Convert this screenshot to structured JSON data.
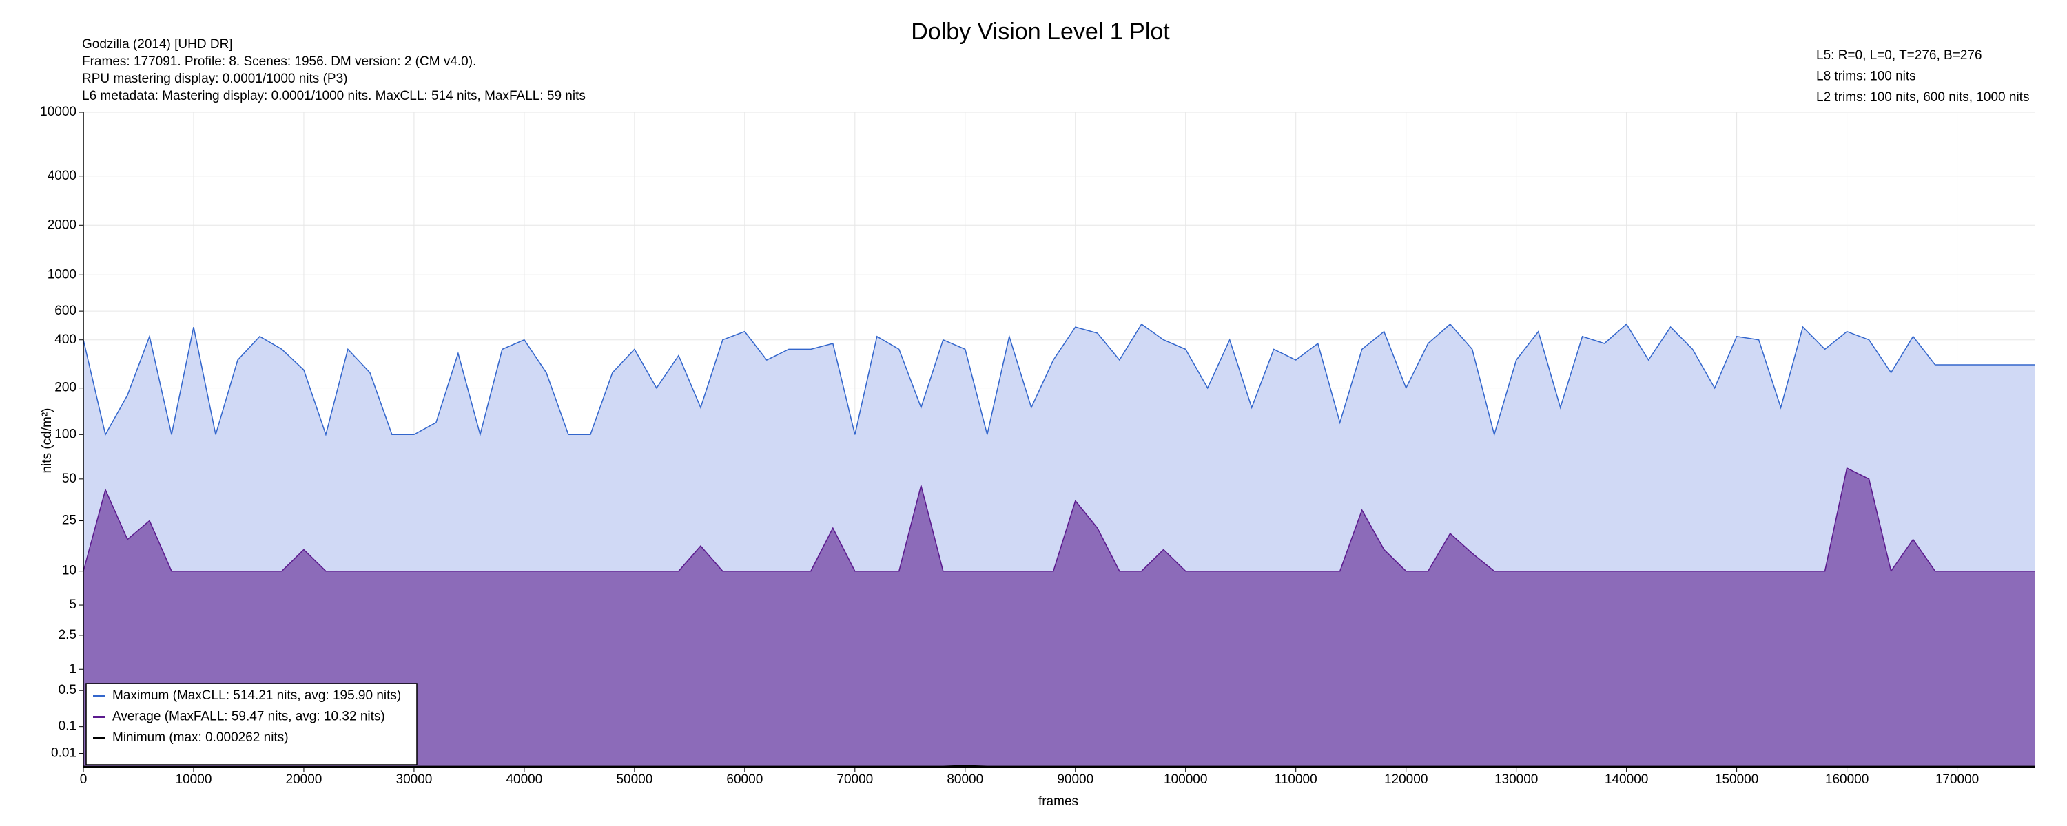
{
  "chart_data": {
    "type": "area",
    "title": "Dolby Vision Level 1 Plot",
    "info_left": [
      "Godzilla (2014) [UHD DR]",
      "Frames: 177091. Profile: 8. Scenes: 1956. DM version: 2 (CM v4.0).",
      "RPU mastering display: 0.0001/1000 nits  (P3)",
      "L6 metadata: Mastering display: 0.0001/1000 nits. MaxCLL: 514 nits, MaxFALL: 59 nits"
    ],
    "info_right": [
      "L5: R=0, L=0, T=276, B=276",
      "L8 trims: 100 nits",
      "L2 trims: 100 nits, 600 nits, 1000 nits"
    ],
    "x_label": "frames",
    "y_label": "nits (cd/m²)",
    "y_scale": "pq",
    "grid": true,
    "legend": "lower left",
    "xlim": [
      0,
      177091
    ],
    "xticks": [
      0,
      10000,
      20000,
      30000,
      40000,
      50000,
      60000,
      70000,
      80000,
      90000,
      100000,
      110000,
      120000,
      130000,
      140000,
      150000,
      160000,
      170000
    ],
    "ylim": [
      0,
      10000
    ],
    "yticks": [
      0.01,
      0.1,
      0.5,
      1,
      2.5,
      5,
      10,
      25,
      50,
      100,
      200,
      400,
      600,
      1000,
      2000,
      4000,
      10000
    ],
    "x": [
      0,
      2000,
      4000,
      6000,
      8000,
      10000,
      12000,
      14000,
      16000,
      18000,
      20000,
      22000,
      24000,
      26000,
      28000,
      30000,
      32000,
      34000,
      36000,
      38000,
      40000,
      42000,
      44000,
      46000,
      48000,
      50000,
      52000,
      54000,
      56000,
      58000,
      60000,
      62000,
      64000,
      66000,
      68000,
      70000,
      72000,
      74000,
      76000,
      78000,
      80000,
      82000,
      84000,
      86000,
      88000,
      90000,
      92000,
      94000,
      96000,
      98000,
      100000,
      102000,
      104000,
      106000,
      108000,
      110000,
      112000,
      114000,
      116000,
      118000,
      120000,
      122000,
      124000,
      126000,
      128000,
      130000,
      132000,
      134000,
      136000,
      138000,
      140000,
      142000,
      144000,
      146000,
      148000,
      150000,
      152000,
      154000,
      156000,
      158000,
      160000,
      162000,
      164000,
      166000,
      168000,
      170000,
      172000,
      174000,
      176000,
      177091
    ],
    "series": [
      {
        "name": "Maximum (MaxCLL: 514.21 nits, avg: 195.90 nits)",
        "color": "#3366cc",
        "fill": "#d0d9f5",
        "values": [
          400,
          100,
          180,
          420,
          100,
          480,
          100,
          300,
          420,
          350,
          260,
          100,
          350,
          250,
          100,
          100,
          120,
          330,
          100,
          350,
          400,
          250,
          100,
          100,
          250,
          350,
          200,
          320,
          150,
          400,
          450,
          300,
          350,
          350,
          380,
          100,
          420,
          350,
          150,
          400,
          350,
          100,
          420,
          150,
          300,
          480,
          440,
          300,
          500,
          400,
          350,
          200,
          400,
          150,
          350,
          300,
          380,
          120,
          350,
          450,
          200,
          380,
          500,
          350,
          100,
          300,
          450,
          150,
          420,
          380,
          500,
          300,
          480,
          350,
          200,
          420,
          400,
          150,
          480,
          350,
          450,
          400,
          250,
          420,
          280,
          280,
          280,
          280,
          280,
          280
        ]
      },
      {
        "name": "Average (MaxFALL: 59.47 nits, avg: 10.32 nits)",
        "color": "#5b1a8e",
        "fill": "#8c6bb9",
        "values": [
          10,
          42,
          18,
          25,
          10,
          10,
          10,
          10,
          10,
          10,
          15,
          10,
          10,
          10,
          10,
          10,
          10,
          10,
          10,
          10,
          10,
          10,
          10,
          10,
          10,
          10,
          10,
          10,
          16,
          10,
          10,
          10,
          10,
          10,
          22,
          10,
          10,
          10,
          45,
          10,
          10,
          10,
          10,
          10,
          10,
          35,
          22,
          10,
          10,
          15,
          10,
          10,
          10,
          10,
          10,
          10,
          10,
          10,
          30,
          15,
          10,
          10,
          20,
          14,
          10,
          10,
          10,
          10,
          10,
          10,
          10,
          10,
          10,
          10,
          10,
          10,
          10,
          10,
          10,
          10,
          59.47,
          50,
          10,
          18,
          10,
          10,
          10,
          10,
          10,
          10
        ]
      },
      {
        "name": "Minimum (max: 0.000262 nits)",
        "color": "#000000",
        "fill": "#000000",
        "values": [
          0.0001,
          0.0001,
          0.0001,
          0.0001,
          0.0001,
          0.0001,
          0.0001,
          0.0001,
          0.0001,
          0.0001,
          0.0001,
          0.0001,
          0.0001,
          0.0001,
          0.0001,
          0.0001,
          0.0001,
          0.0001,
          0.0001,
          0.0001,
          0.0001,
          0.0001,
          0.0001,
          0.0001,
          0.0001,
          0.0001,
          0.0001,
          0.0001,
          0.0001,
          0.0001,
          0.0001,
          0.0001,
          0.0001,
          0.0001,
          0.0001,
          0.0001,
          0.0001,
          0.0001,
          0.0001,
          0.0001,
          0.000262,
          0.0001,
          0.0001,
          0.0001,
          0.0001,
          0.0001,
          0.0001,
          0.0001,
          0.0001,
          0.0001,
          0.0001,
          0.0001,
          0.0001,
          0.0001,
          0.0001,
          0.0001,
          0.0001,
          0.0001,
          0.0001,
          0.0001,
          0.0001,
          0.0001,
          0.0001,
          0.0001,
          0.0001,
          0.0001,
          0.0001,
          0.0001,
          0.0001,
          0.0001,
          0.0001,
          0.0001,
          0.0001,
          0.0001,
          0.0001,
          0.0001,
          0.0001,
          0.0001,
          0.0001,
          0.0001,
          0.0001,
          0.0001,
          0.0001,
          0.0001,
          0.0001,
          0.0001,
          0.0001,
          0.0001,
          0.0001,
          0.0001
        ]
      }
    ]
  }
}
